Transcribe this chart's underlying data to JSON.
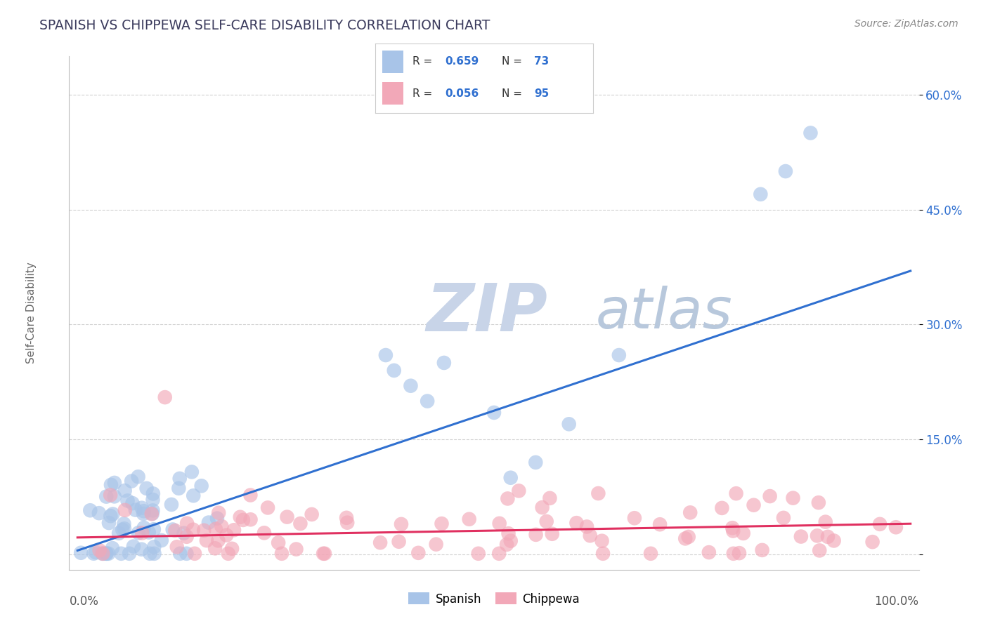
{
  "title": "SPANISH VS CHIPPEWA SELF-CARE DISABILITY CORRELATION CHART",
  "source": "Source: ZipAtlas.com",
  "ylabel": "Self-Care Disability",
  "yticks": [
    0.0,
    0.15,
    0.3,
    0.45,
    0.6
  ],
  "ytick_labels": [
    "",
    "15.0%",
    "30.0%",
    "45.0%",
    "60.0%"
  ],
  "xlim": [
    -0.01,
    1.01
  ],
  "ylim": [
    -0.02,
    0.65
  ],
  "spanish_R": 0.659,
  "spanish_N": 73,
  "chippewa_R": 0.056,
  "chippewa_N": 95,
  "spanish_color": "#a8c4e8",
  "chippewa_color": "#f2a8b8",
  "spanish_line_color": "#3070d0",
  "chippewa_line_color": "#e03060",
  "background_color": "#ffffff",
  "grid_color": "#cccccc",
  "title_color": "#3a3a5c",
  "watermark_color_zip": "#c8d4e8",
  "watermark_color_atlas": "#b8c8dc",
  "legend_blue": "#3070d0",
  "legend_pink": "#e03060",
  "spanish_slope": 0.365,
  "spanish_intercept": 0.005,
  "chippewa_slope": 0.018,
  "chippewa_intercept": 0.022
}
